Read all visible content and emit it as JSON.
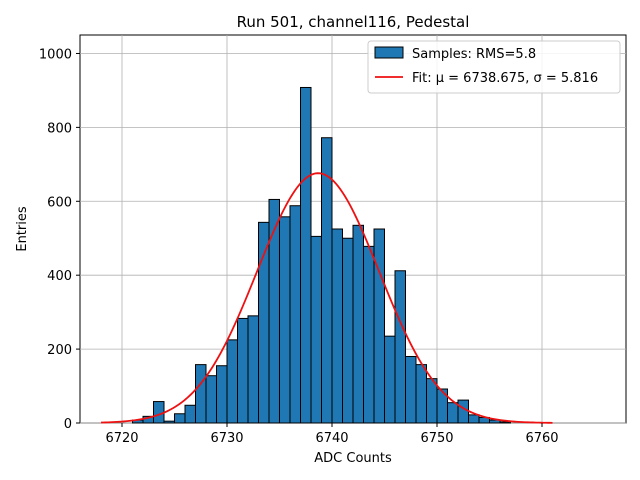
{
  "chart_data": {
    "type": "bar",
    "title": "Run 501, channel116, Pedestal",
    "xlabel": "ADC Counts",
    "ylabel": "Entries",
    "xlim": [
      6716,
      6768
    ],
    "ylim": [
      0,
      1050
    ],
    "xticks": [
      "6720",
      "6730",
      "6740",
      "6750",
      "6760"
    ],
    "xtick_values": [
      6720,
      6730,
      6740,
      6750,
      6760
    ],
    "yticks": [
      "0",
      "200",
      "400",
      "600",
      "800",
      "1000"
    ],
    "ytick_values": [
      0,
      200,
      400,
      600,
      800,
      1000
    ],
    "grid": true,
    "legend_position": "top-right",
    "colors": {
      "bars": "#1f77b4",
      "bar_edge": "#000000",
      "fit": "#ee1111",
      "grid": "#b0b0b0"
    },
    "histogram": {
      "name": "Samples: RMS=5.8",
      "bin_edges": [
        6721,
        6722,
        6723,
        6724,
        6725,
        6726,
        6727,
        6728,
        6729,
        6730,
        6731,
        6732,
        6733,
        6734,
        6735,
        6736,
        6737,
        6738,
        6739,
        6740,
        6741,
        6742,
        6743,
        6744,
        6745,
        6746,
        6747,
        6748,
        6749,
        6750,
        6751,
        6752,
        6753,
        6754,
        6755,
        6756,
        6757
      ],
      "counts": [
        8,
        18,
        58,
        5,
        25,
        48,
        158,
        128,
        155,
        225,
        283,
        290,
        543,
        605,
        558,
        588,
        908,
        505,
        772,
        525,
        500,
        535,
        478,
        525,
        235,
        412,
        180,
        158,
        120,
        92,
        55,
        62,
        22,
        15,
        8,
        3
      ]
    },
    "fit": {
      "name": "Fit: μ = 6738.675, σ = 5.816",
      "mu": 6738.675,
      "sigma": 5.816,
      "peak": 676,
      "x_range": [
        6718,
        6761
      ]
    }
  }
}
